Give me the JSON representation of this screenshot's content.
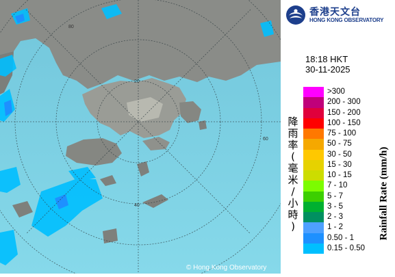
{
  "map": {
    "copyright": "© Hong Kong Observatory",
    "range_ring_labels": [
      "20",
      "40",
      "60",
      "80"
    ],
    "colors": {
      "sea": "#7fd3e6",
      "land": "#8a8c88",
      "rain_light": "#00bfff"
    }
  },
  "header": {
    "logo_icon": "hko-logo-icon",
    "logo_chinese": "香港天文台",
    "logo_english": "HONG KONG OBSERVATORY"
  },
  "timestamp": {
    "time": "18:18 HKT",
    "date": "30-11-2025"
  },
  "legend": {
    "title_zh": "降\n雨\n率\n(\n毫\n米\n/\n小\n時\n)",
    "title_en": "Rainfall Rate (mm/h)",
    "items": [
      {
        "label": ">300",
        "color": "#ff00ff"
      },
      {
        "label": "200 - 300",
        "color": "#c0007a"
      },
      {
        "label": "150 - 200",
        "color": "#e0003c"
      },
      {
        "label": "100 - 150",
        "color": "#ff0000"
      },
      {
        "label": "75 - 100",
        "color": "#ff7800"
      },
      {
        "label": "50 - 75",
        "color": "#f5a800"
      },
      {
        "label": "30 - 50",
        "color": "#ffc800"
      },
      {
        "label": "15 - 30",
        "color": "#e6d200"
      },
      {
        "label": "10 - 15",
        "color": "#ccdd00"
      },
      {
        "label": "7 - 10",
        "color": "#7cfc00"
      },
      {
        "label": "5 - 7",
        "color": "#3ccf00"
      },
      {
        "label": "3 - 5",
        "color": "#00b030"
      },
      {
        "label": "2 - 3",
        "color": "#009060"
      },
      {
        "label": "1 - 2",
        "color": "#4ea0ff"
      },
      {
        "label": "0.50 - 1",
        "color": "#1e90ff"
      },
      {
        "label": "0.15 - 0.50",
        "color": "#00bfff"
      }
    ]
  }
}
